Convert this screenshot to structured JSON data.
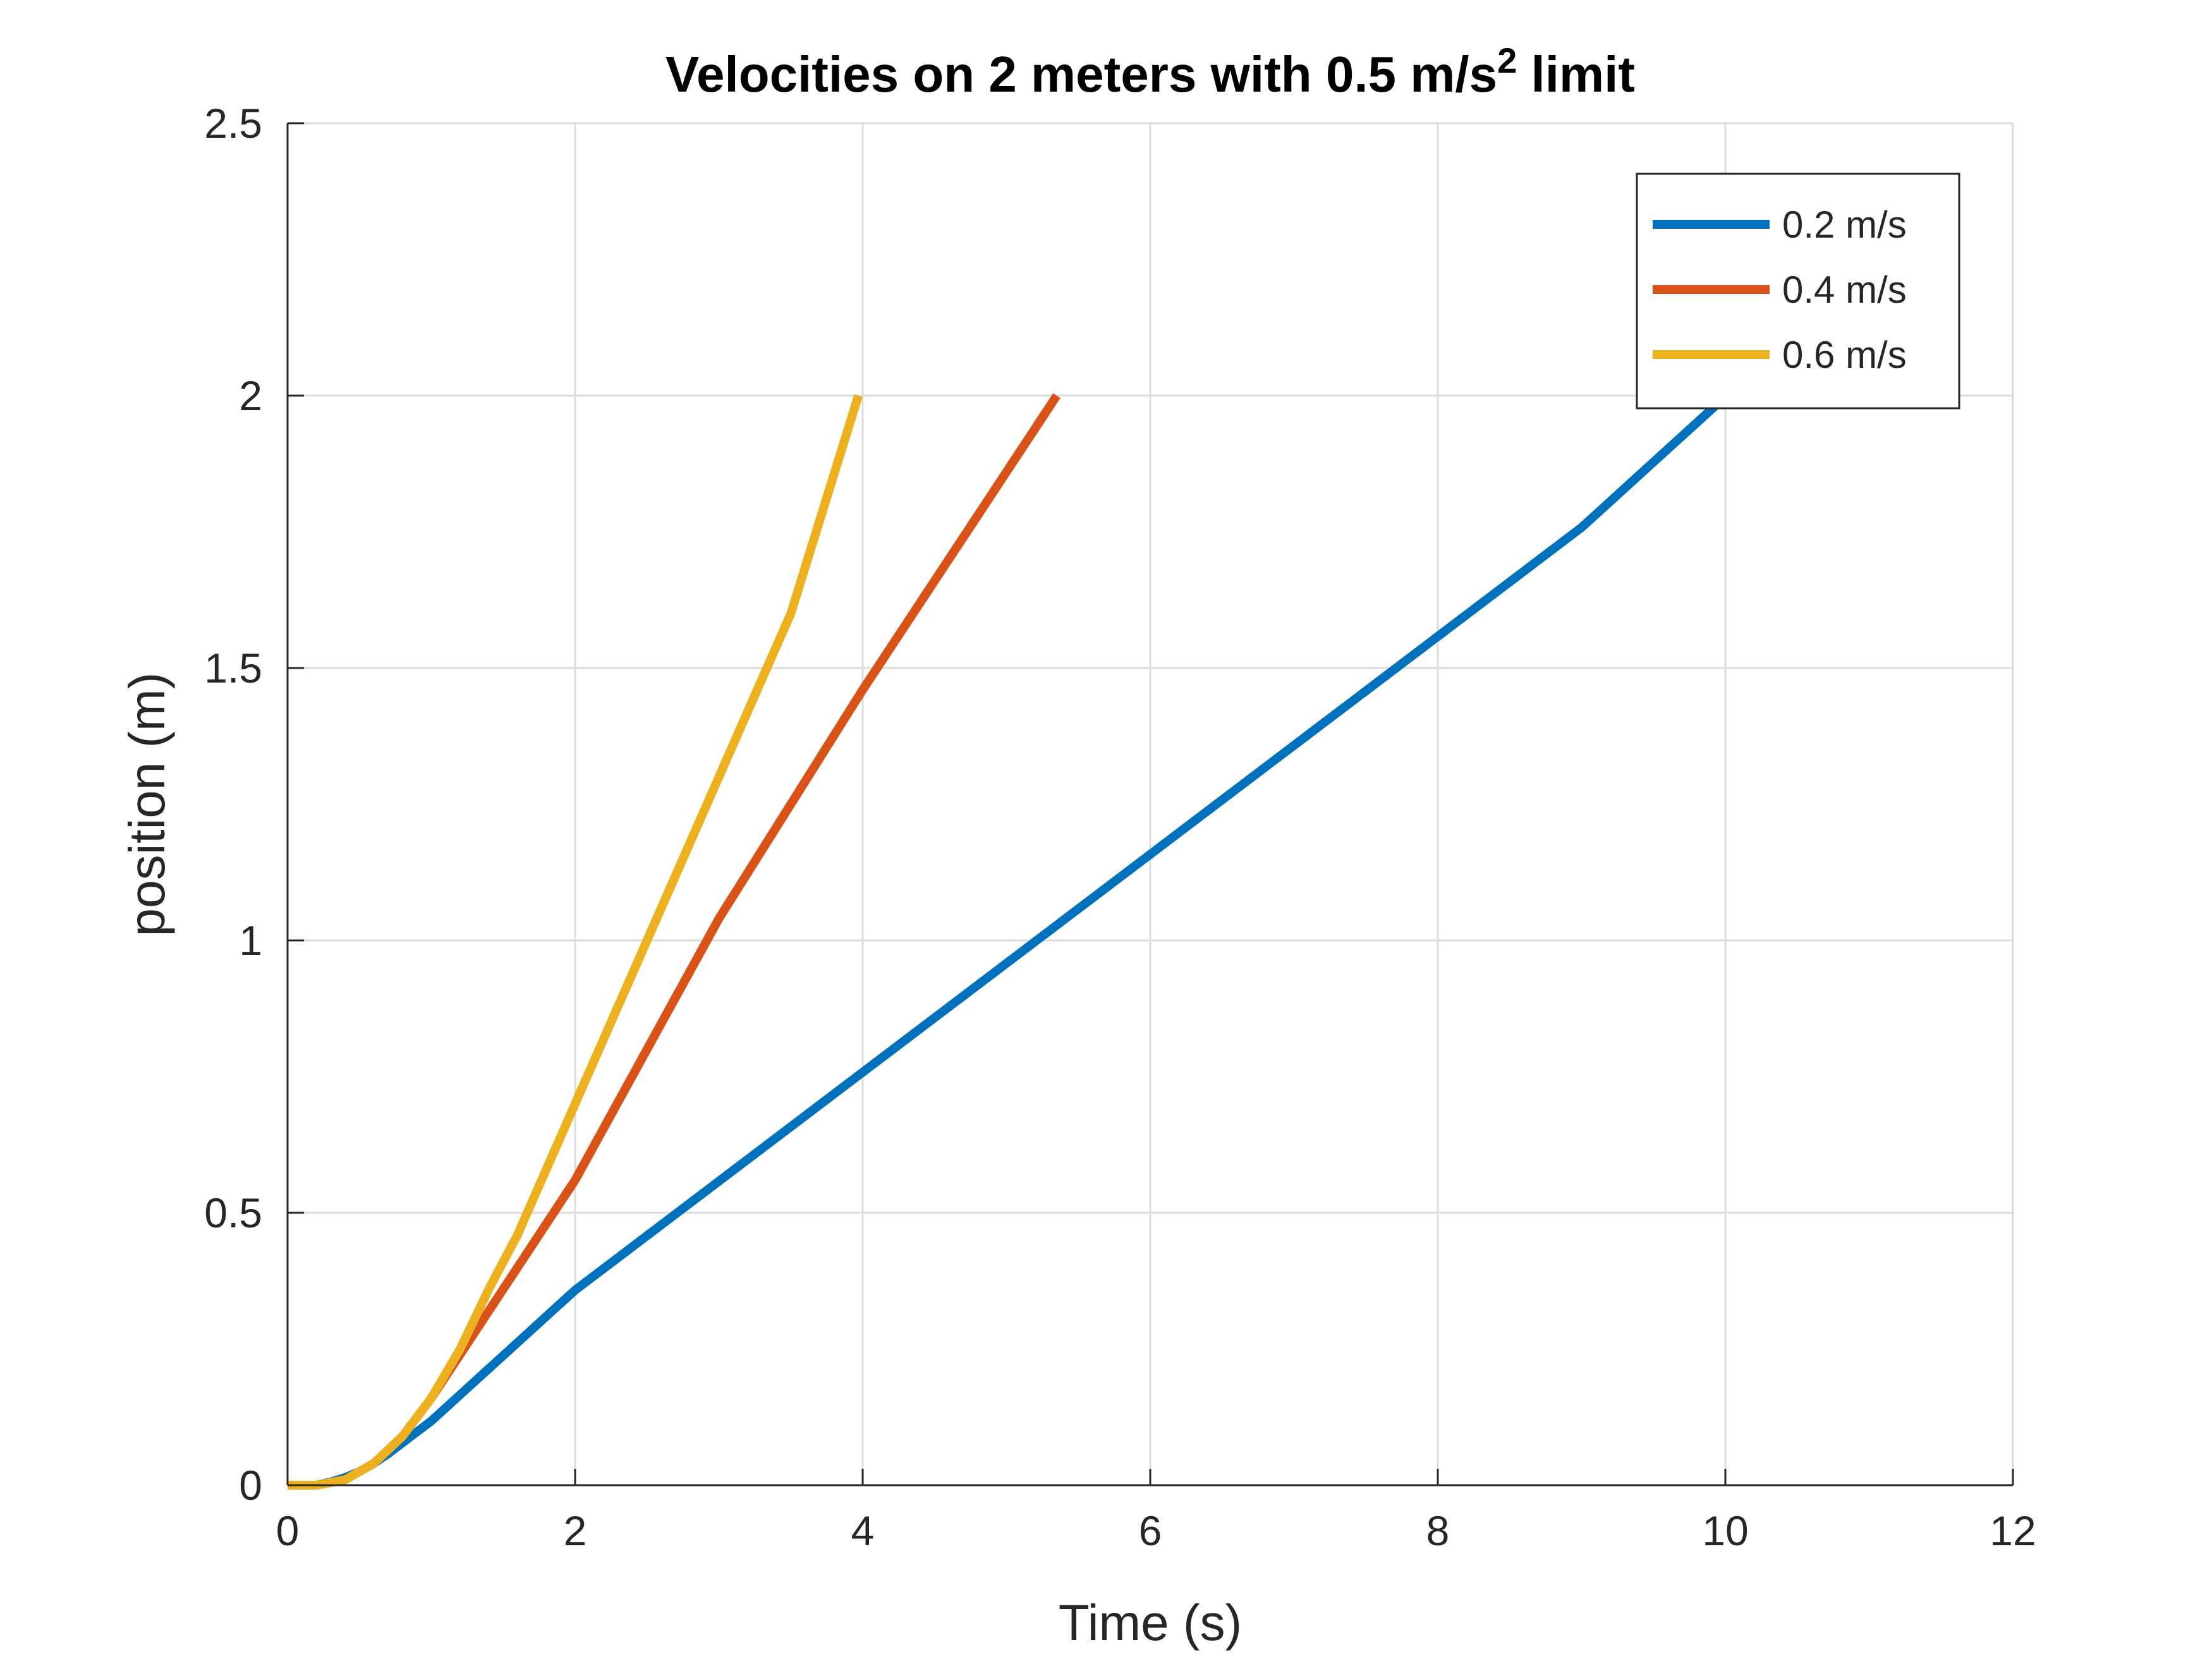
{
  "chart_data": {
    "type": "line",
    "title": "Velocities on 2 meters with 0.5 m/s",
    "title_superscript": "2",
    "title_suffix": " limit",
    "xlabel": "Time (s)",
    "ylabel": "position (m)",
    "xlim": [
      0,
      12
    ],
    "ylim": [
      0,
      2.5
    ],
    "xticks": [
      0,
      2,
      4,
      6,
      8,
      10,
      12
    ],
    "yticks": [
      0,
      0.5,
      1,
      1.5,
      2,
      2.5
    ],
    "xtick_labels": [
      "0",
      "2",
      "4",
      "6",
      "8",
      "10",
      "12"
    ],
    "ytick_labels": [
      "0",
      "0.5",
      "1",
      "1.5",
      "2",
      "2.5"
    ],
    "grid": true,
    "legend_position": "top-right",
    "series": [
      {
        "name": "0.2 m/s",
        "color": "#0072BD",
        "x": [
          0,
          0.2,
          0.3,
          0.4,
          0.5,
          0.6,
          0.7,
          1,
          2,
          3,
          4,
          5,
          6,
          7,
          8,
          9,
          10
        ],
        "y": [
          0,
          0,
          0.006,
          0.014,
          0.025,
          0.04,
          0.058,
          0.118,
          0.358,
          0.558,
          0.758,
          0.958,
          1.158,
          1.358,
          1.558,
          1.758,
          1.998
        ]
      },
      {
        "name": "0.4 m/s",
        "color": "#D95319",
        "x": [
          0,
          0.2,
          0.4,
          0.6,
          0.8,
          1.0,
          1.2,
          1.4,
          2,
          3,
          4,
          5,
          5.35
        ],
        "y": [
          0,
          0,
          0.01,
          0.04,
          0.09,
          0.16,
          0.24,
          0.32,
          0.56,
          1.04,
          1.46,
          1.86,
          2.0
        ]
      },
      {
        "name": "0.6 m/s",
        "color": "#EDB120",
        "x": [
          0,
          0.2,
          0.4,
          0.6,
          0.8,
          1.0,
          1.2,
          1.4,
          1.6,
          2,
          2.5,
          3,
          3.5,
          3.97
        ],
        "y": [
          0,
          0,
          0.01,
          0.04,
          0.09,
          0.16,
          0.25,
          0.36,
          0.46,
          0.7,
          1.0,
          1.3,
          1.6,
          2.0
        ]
      }
    ]
  }
}
